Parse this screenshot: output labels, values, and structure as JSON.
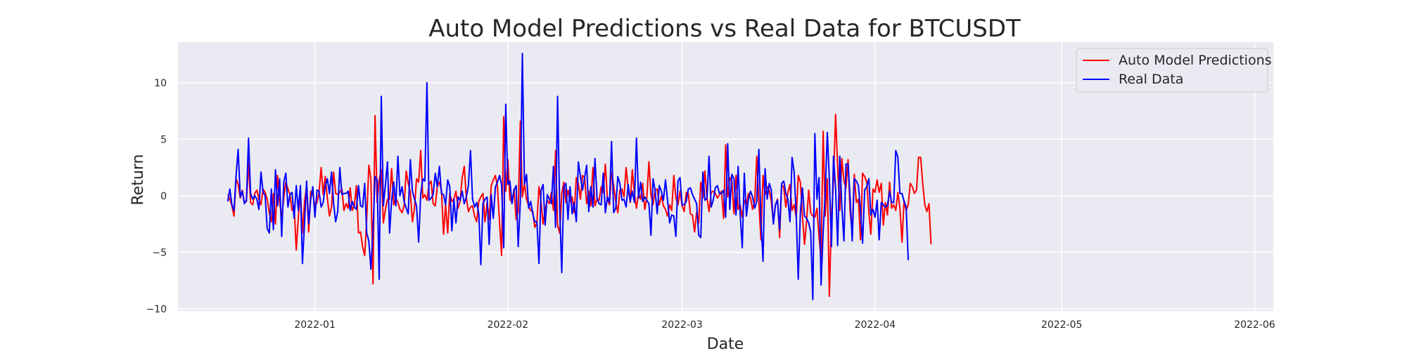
{
  "chart_data": {
    "type": "line",
    "title": "Auto Model Predictions vs Real Data for BTCUSDT",
    "xlabel": "Date",
    "ylabel": "Return",
    "xlim": [
      "2021-12-10",
      "2022-06-04"
    ],
    "ylim": [
      -10.2,
      13.6
    ],
    "x_ticks": [
      "2022-01-01",
      "2022-02-01",
      "2022-03-01",
      "2022-04-01",
      "2022-05-01",
      "2022-06-01"
    ],
    "x_tick_labels": [
      "2022-01",
      "2022-02",
      "2022-03",
      "2022-04",
      "2022-05",
      "2022-06"
    ],
    "y_ticks": [
      -10,
      -5,
      0,
      5,
      10
    ],
    "y_tick_labels": [
      "−10",
      "−5",
      "0",
      "5",
      "10"
    ],
    "grid": true,
    "legend_position": "top-right",
    "x_start": "2021-12-18",
    "x_step": "8H",
    "series": [
      {
        "name": "Auto Model Predictions",
        "color": "#ff0000",
        "values": [
          0.1,
          -0.3,
          -0.9,
          -1.8,
          1.5,
          1,
          -0.2,
          0.5,
          -0.6,
          -0.5,
          3,
          -0.6,
          -0.8,
          0.2,
          0.5,
          -0.3,
          -0.8,
          0.6,
          0.3,
          -0.3,
          -1.5,
          -2.3,
          0.2,
          -2.5,
          1.8,
          -0.6,
          -1.9,
          -0.2,
          1.2,
          0.6,
          0.1,
          -1.3,
          -0.9,
          -4.8,
          -2,
          0.5,
          -3.3,
          -0.5,
          0.8,
          -3.2,
          0.4,
          0.2,
          -0.9,
          -0.6,
          0.3,
          2.5,
          0.1,
          1.7,
          -0.2,
          -1.8,
          -1,
          2.1,
          0.2,
          0.1,
          0.3,
          0.6,
          -1.3,
          -0.7,
          -1.1,
          0.7,
          -1.3,
          -0.9,
          0.9,
          -3.3,
          -3.2,
          -4.5,
          -5.3,
          -2,
          2.7,
          1.5,
          -7.8,
          7.1,
          -0.6,
          1.4,
          2.3,
          -2.4,
          -1.2,
          -0.3,
          -0.3,
          2.4,
          -0.8,
          -0.2,
          -0.6,
          -1.2,
          -1.5,
          -0.9,
          2.2,
          1.1,
          0.3,
          -2.3,
          -1.1,
          1.5,
          1.2,
          4,
          -0.2,
          0.1,
          -0.4,
          1,
          1.3,
          -0.7,
          -0.9,
          0.8,
          1.2,
          0.5,
          -3.4,
          -0.8,
          -3.3,
          0.2,
          -0.5,
          -0.3,
          0.4,
          -1.1,
          -0.5,
          1.6,
          2.6,
          -0.2,
          -1.4,
          -1,
          -0.9,
          -1.8,
          -2.3,
          -0.5,
          -0.1,
          0.2,
          -2.3,
          -0.6,
          -2.1,
          0.9,
          1.4,
          1.8,
          0.8,
          -2.4,
          -5.3,
          7,
          0.4,
          3.2,
          -0.3,
          -0.6,
          0.6,
          -2.1,
          -1.4,
          6.6,
          -0.1,
          1.1,
          -0.3,
          -0.9,
          -1.3,
          -1.4,
          -2.8,
          -2.4,
          0.8,
          -0.5,
          -2.5,
          -1.2,
          -0.4,
          -0.7,
          0.3,
          -1.3,
          4,
          -2.6,
          -3.3,
          0.2,
          1.2,
          -0.6,
          0.5,
          -0.5,
          -0.1,
          -1.5,
          1.6,
          1.1,
          -0.3,
          1.8,
          1.6,
          -0.7,
          0.4,
          -0.9,
          2.5,
          -0.9,
          -0.3,
          -0.4,
          0.8,
          0.3,
          2.8,
          -0.3,
          -0.8,
          2.1,
          0.9,
          -0.5,
          -1.5,
          0.5,
          0.6,
          -0.1,
          2.5,
          0.7,
          -0.6,
          2.3,
          0.2,
          -1.1,
          0.2,
          -0.3,
          1.1,
          -1.2,
          -0.2,
          3,
          0.1,
          -0.8,
          0.5,
          0.6,
          -0.8,
          0,
          -0.9,
          -1.2,
          -1.8,
          -0.8,
          -1.3,
          1.8,
          -0.2,
          -0.8,
          0.4,
          -0.9,
          -1.4,
          0.3,
          0.2,
          -1.6,
          -1.7,
          -3.2,
          -1.5,
          -2.4,
          1.2,
          -0.2,
          2.2,
          -0.2,
          -1.4,
          0.3,
          0.4,
          0.2,
          -0.2,
          0.1,
          0.4,
          -2,
          4.5,
          -0.1,
          1.6,
          1.3,
          -1.6,
          1.8,
          -1.2,
          -0.8,
          -1.9,
          -0.4,
          -0.8,
          0.2,
          -0.2,
          -1.2,
          -0.5,
          3.5,
          -0.6,
          -3.9,
          1.8,
          0.1,
          0.8,
          0.5,
          -0.5,
          -2.3,
          -0.8,
          -0.3,
          -3.7,
          1,
          0.7,
          -1,
          0.3,
          1,
          -1.3,
          -0.8,
          -1.9,
          1.8,
          1.2,
          -1.8,
          -4.3,
          -2.3,
          0.5,
          -1.5,
          -1.8,
          -1.9,
          -1.1,
          -3.6,
          -5.6,
          5.7,
          -1.8,
          1.5,
          -8.9,
          -1.9,
          1.4,
          7.2,
          2.5,
          -1.3,
          3.3,
          1.3,
          0.7,
          3.2,
          -1.4,
          -3.2,
          1.9,
          -0.6,
          -0.3,
          -3.9,
          2,
          1.7,
          1.2,
          -1.4,
          -3.4,
          0.6,
          0.3,
          1.4,
          0.3,
          1.1,
          -2.6,
          -0.6,
          -1.7,
          1.2,
          -1.1,
          -0.8,
          -1.3,
          0.3,
          -1.1,
          -4.1,
          -0.4,
          -1.3,
          -0.8,
          1.1,
          0.8,
          0.2,
          0.5,
          3.4,
          3.4,
          1.1,
          -0.8,
          -1.4,
          -0.7,
          -4.3
        ]
      },
      {
        "name": "Real Data",
        "color": "#0000ff",
        "values": [
          -0.5,
          0.6,
          -0.8,
          -1.3,
          1.8,
          4.1,
          -0.1,
          0.4,
          -0.7,
          -0.4,
          5.1,
          0.2,
          -0.3,
          0,
          -0.3,
          -1.2,
          2.1,
          0.3,
          0,
          -2.9,
          -3.3,
          0.6,
          -3,
          2.3,
          -0.9,
          1.5,
          -3.6,
          1.2,
          2,
          -1,
          0.1,
          0.3,
          -2,
          0.9,
          -1.3,
          0.9,
          -6,
          -2.4,
          1.3,
          -2.5,
          -0.3,
          0.8,
          -1.9,
          0.5,
          0.4,
          -1,
          -0.6,
          0.9,
          1.5,
          0.2,
          2.1,
          -0.7,
          -2.3,
          -1.4,
          2.5,
          0.1,
          0.2,
          0.2,
          0.4,
          -1.3,
          -0.5,
          -1,
          -1.2,
          0.9,
          -0.9,
          -1,
          1.1,
          -3.3,
          -4,
          -6.5,
          -3.1,
          1.7,
          1.4,
          -7.4,
          8.8,
          -0.9,
          1,
          3,
          -3.3,
          -0.4,
          1.2,
          -0.9,
          3.5,
          0,
          0.8,
          -0.5,
          -1.1,
          -1.6,
          3.2,
          0.4,
          -0.3,
          -0.9,
          -4.1,
          0.1,
          1.5,
          1.3,
          10,
          -0.4,
          -0.2,
          0.1,
          2,
          0.8,
          2.6,
          0.2,
          0.1,
          -0.8,
          1.4,
          0.8,
          -3.1,
          -0.3,
          -2.4,
          -0.1,
          -0.4,
          0.4,
          -0.7,
          -0.1,
          0.9,
          4,
          -0.3,
          -1,
          -0.6,
          -1.6,
          -6.1,
          -0.7,
          -0.3,
          -0.1,
          -4.3,
          0.1,
          -2,
          0.8,
          1.2,
          1.8,
          1,
          -4.6,
          8.1,
          1,
          1.3,
          -0.7,
          0.5,
          0.9,
          -4.5,
          -0.6,
          12.6,
          1,
          1.9,
          -1.1,
          -0.5,
          -1.6,
          -2.3,
          -2.3,
          -6,
          0.5,
          1,
          -2.6,
          0.1,
          -0.3,
          -0.7,
          2.6,
          -2.8,
          8.8,
          -1.1,
          -6.8,
          0.8,
          1.1,
          -2.1,
          0.8,
          -1.6,
          -0.6,
          -2.3,
          3,
          1.7,
          0.5,
          1.6,
          2.7,
          -1.4,
          0.8,
          -1,
          3.3,
          -0.2,
          -0.7,
          -0.8,
          2,
          -1.5,
          -0.1,
          -0.6,
          4.8,
          -1.5,
          -1.1,
          1.7,
          1.1,
          -0.4,
          -0.3,
          -1,
          1,
          -0.5,
          0.4,
          -0.6,
          5.1,
          -0.2,
          1.2,
          -0.5,
          -0.1,
          -0.4,
          -0.7,
          -3.5,
          1.5,
          0.5,
          -1.6,
          0.9,
          0.4,
          -0.4,
          1.4,
          -0.4,
          -2.4,
          -1.7,
          -1.8,
          -3.6,
          1.3,
          1.6,
          -0.8,
          -0.8,
          -0.5,
          0.6,
          0.7,
          0.1,
          -0.3,
          -0.7,
          -3.5,
          -3.7,
          2.1,
          -0.4,
          -0.2,
          3.5,
          -1,
          -0.4,
          0.7,
          0.9,
          0.2,
          0.2,
          0.5,
          -1.9,
          4.6,
          -1.2,
          1.9,
          1.5,
          -1.7,
          2.6,
          -1.6,
          -4.6,
          2,
          -1.8,
          -0.3,
          0.4,
          -0.1,
          -1.1,
          -0.5,
          4.1,
          -2.1,
          -5.8,
          2.4,
          -0.3,
          1.1,
          0.5,
          -2.5,
          -0.8,
          -0.4,
          -3,
          1.1,
          1.3,
          0.2,
          -0.3,
          -2.3,
          3.4,
          2.1,
          -1.7,
          -7.4,
          -1.5,
          0.7,
          -1.8,
          -2,
          -2.4,
          -3.2,
          -9.2,
          5.5,
          -0.3,
          1.6,
          -7.9,
          -3.2,
          0.2,
          5.6,
          1.4,
          -4.5,
          3.5,
          0.6,
          -4.4,
          3.5,
          -0.9,
          -4,
          2.8,
          2.8,
          -0.2,
          -4,
          1.5,
          1.3,
          0.9,
          -1.3,
          -4.2,
          0.5,
          0.8,
          1.5,
          -1.7,
          -1.2,
          -1.9,
          -0.4,
          -3.9,
          -0.6,
          -0.8,
          -1,
          -0.9,
          0.4,
          -0.6,
          -0.6,
          4,
          3.4,
          0.2,
          0.2,
          -0.5,
          -1,
          -5.7
        ]
      }
    ]
  }
}
